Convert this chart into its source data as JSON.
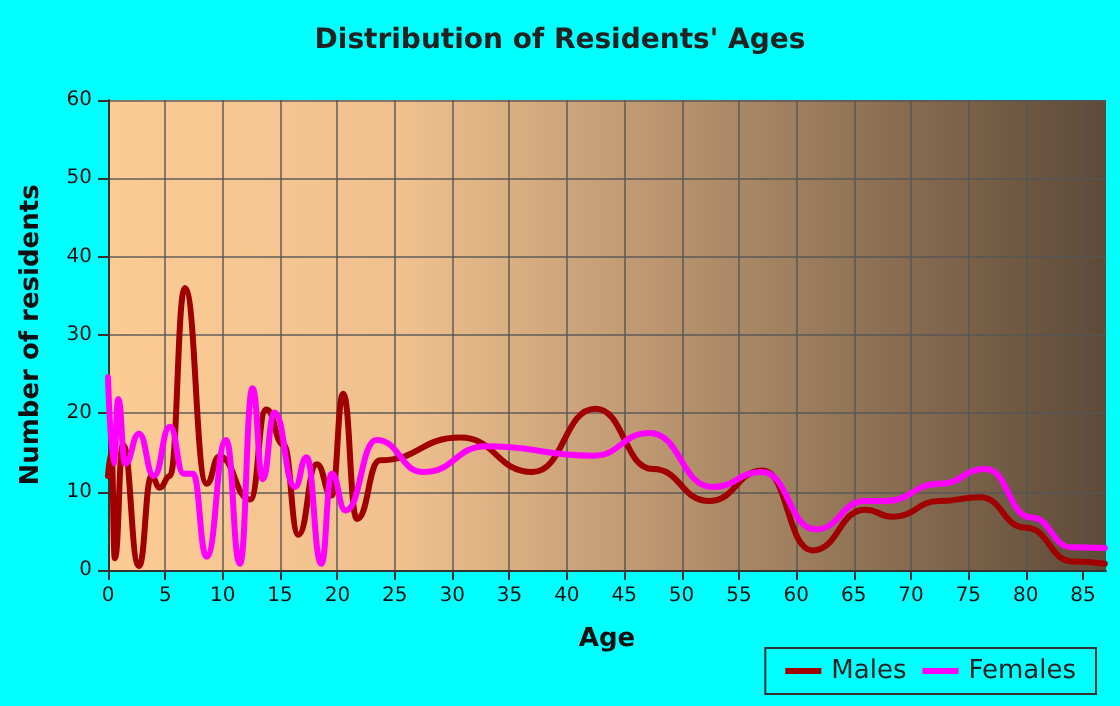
{
  "chart_data": {
    "type": "line",
    "title": "Distribution of Residents' Ages",
    "xlabel": "Age",
    "ylabel": "Number of residents",
    "xlim": [
      0,
      87
    ],
    "xticks": [
      0,
      5,
      10,
      15,
      20,
      25,
      30,
      35,
      40,
      45,
      50,
      55,
      60,
      65,
      70,
      75,
      80,
      85
    ],
    "ylim": [
      0,
      60
    ],
    "yticks": [
      0,
      10,
      20,
      30,
      40,
      50,
      60
    ],
    "grid": true,
    "legend": "bottom right",
    "marker": "none",
    "line_style": "solid",
    "series": [
      {
        "name": "Males",
        "color": "#a00000",
        "x": [
          0,
          0.3,
          0.6,
          1.3,
          2.7,
          3.8,
          4.5,
          5.4,
          6.7,
          8.6,
          9.7,
          12.4,
          13.8,
          15.3,
          16.6,
          18.2,
          19.5,
          20.5,
          21.7,
          23.7,
          30.7,
          37,
          42.5,
          47.5,
          52.4,
          57.1,
          61.4,
          66,
          68.4,
          72.5,
          76,
          80,
          84.1,
          86.9
        ],
        "values": [
          12,
          15,
          1.5,
          16,
          0.5,
          12,
          10.5,
          12,
          36,
          11,
          14.5,
          9,
          20.5,
          16,
          4.5,
          13.5,
          9.5,
          22.5,
          6.5,
          14,
          16.9,
          12.5,
          20.6,
          12.9,
          8.8,
          12.7,
          2.5,
          7.7,
          6.8,
          8.8,
          9.3,
          5.4,
          1.1,
          0.8
        ]
      },
      {
        "name": "Females",
        "color": "#ff00ff",
        "x": [
          0,
          0.5,
          0.9,
          1.5,
          2.7,
          4,
          5.4,
          6.6,
          7.4,
          8.6,
          10.3,
          11.5,
          12.6,
          13.5,
          14.5,
          16.3,
          17.3,
          18.6,
          19.5,
          20.7,
          23.4,
          27.5,
          33,
          42.3,
          47.2,
          52.7,
          57,
          61.7,
          66,
          67.7,
          72.5,
          76.5,
          80.5,
          84,
          86.9
        ],
        "values": [
          24.6,
          13.6,
          21.8,
          13.6,
          17.4,
          12,
          18.3,
          12.3,
          12.3,
          1.7,
          16.6,
          0.8,
          23.2,
          11.6,
          20.1,
          10.6,
          14.4,
          0.8,
          12.3,
          7.6,
          16.6,
          12.5,
          15.8,
          14.6,
          17.5,
          10.6,
          12.5,
          5.2,
          8.8,
          8.8,
          11,
          12.9,
          6.7,
          2.9,
          2.8
        ]
      }
    ]
  }
}
